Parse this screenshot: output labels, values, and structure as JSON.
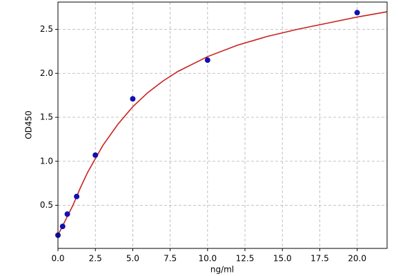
{
  "chart_data": {
    "type": "scatter",
    "xlabel": "ng/ml",
    "ylabel": "OD450",
    "xlim": [
      0,
      22
    ],
    "ylim": [
      0.01,
      2.81
    ],
    "xticks": [
      {
        "value": 0,
        "label": "0.0"
      },
      {
        "value": 2.5,
        "label": "2.5"
      },
      {
        "value": 5,
        "label": "5.0"
      },
      {
        "value": 7.5,
        "label": "7.5"
      },
      {
        "value": 10,
        "label": "10.0"
      },
      {
        "value": 12.5,
        "label": "12.5"
      },
      {
        "value": 15,
        "label": "15.0"
      },
      {
        "value": 17.5,
        "label": "17.5"
      },
      {
        "value": 20,
        "label": "20.0"
      }
    ],
    "yticks": [
      0.5,
      {
        "value": 1,
        "label": "1.0"
      },
      1.5,
      {
        "value": 2,
        "label": "2.0"
      },
      2.5
    ],
    "grid": true,
    "series": [
      {
        "mode": "line",
        "color": "#c8201e",
        "x": [
          0,
          0.5,
          1,
          1.5,
          2,
          3,
          4,
          5,
          6,
          7,
          8,
          10,
          12,
          14,
          16,
          18,
          20,
          22
        ],
        "values": [
          0.16,
          0.33,
          0.5,
          0.7,
          0.88,
          1.18,
          1.42,
          1.62,
          1.78,
          1.91,
          2.02,
          2.19,
          2.32,
          2.42,
          2.5,
          2.57,
          2.64,
          2.7
        ]
      },
      {
        "mode": "markers",
        "color": "#1010b0",
        "x": [
          0,
          0.3125,
          0.625,
          1.25,
          2.5,
          5,
          10,
          20
        ],
        "values": [
          0.16,
          0.26,
          0.4,
          0.6,
          1.07,
          1.71,
          2.15,
          2.69
        ]
      }
    ]
  }
}
